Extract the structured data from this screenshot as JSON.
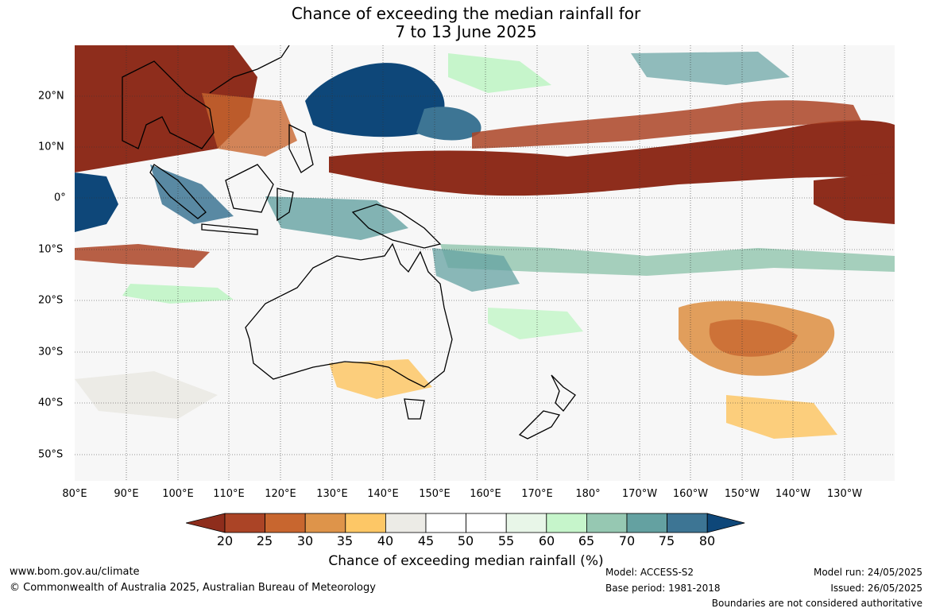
{
  "title_line1": "Chance of exceeding the median rainfall for",
  "title_line2": "7 to 13 June 2025",
  "map": {
    "lon_labels": [
      "80°E",
      "90°E",
      "100°E",
      "110°E",
      "120°E",
      "130°E",
      "140°E",
      "150°E",
      "160°E",
      "170°E",
      "180°",
      "170°W",
      "160°W",
      "150°W",
      "140°W",
      "130°W"
    ],
    "lat_labels": [
      "20°N",
      "10°N",
      "0°",
      "10°S",
      "20°S",
      "30°S",
      "40°S",
      "50°S"
    ]
  },
  "colorbar": {
    "ticks": [
      "20",
      "25",
      "30",
      "35",
      "40",
      "45",
      "50",
      "55",
      "60",
      "65",
      "70",
      "75",
      "80"
    ],
    "colors": [
      "#8e2d1c",
      "#ab4426",
      "#c8662f",
      "#de944a",
      "#fdc766",
      "#ecebe6",
      "#ffffff",
      "#ffffff",
      "#e8f6e8",
      "#c6f5cb",
      "#96c8b2",
      "#64a1a1",
      "#3d7594",
      "#0e4779"
    ],
    "title": "Chance of exceeding median rainfall (%)"
  },
  "footer": {
    "website": "www.bom.gov.au/climate",
    "copyright": "© Commonwealth of Australia 2025, Australian Bureau of Meteorology",
    "model": "Model: ACCESS-S2",
    "base_period": "Base period: 1981-2018",
    "model_run": "Model run: 24/05/2025",
    "issued": "Issued: 26/05/2025",
    "boundaries_note": "Boundaries are not considered authoritative"
  }
}
